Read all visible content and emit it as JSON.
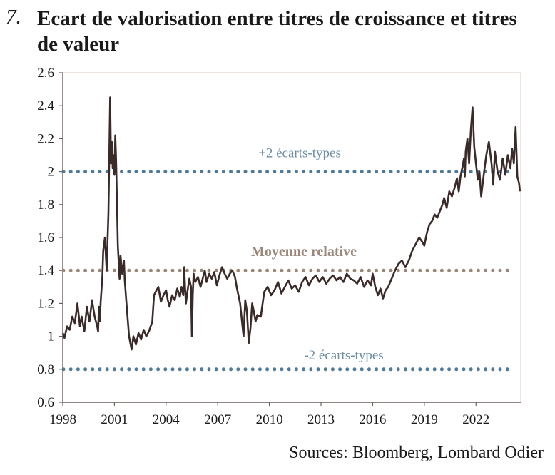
{
  "header": {
    "number": "7.",
    "title": "Ecart de valorisation entre titres de croissance et titres de valeur"
  },
  "source": "Sources: Bloomberg, Lombard Odier",
  "colors": {
    "series": "#3a2a28",
    "plus_minus_lines": "#4f7a99",
    "mean_line": "#9a877a",
    "plus_minus_text": "#6d8ea6",
    "mean_text": "#9a877a",
    "frame": "#e3c7c2"
  },
  "chart_data": {
    "type": "line",
    "title": "Ecart de valorisation entre titres de croissance et titres de valeur",
    "xlabel": "",
    "ylabel": "",
    "xlim": [
      1998,
      2024.6
    ],
    "ylim": [
      0.6,
      2.6
    ],
    "x_ticks": [
      "1998",
      "2001",
      "2004",
      "2007",
      "2010",
      "2013",
      "2016",
      "2019",
      "2022"
    ],
    "y_ticks": [
      "0.6",
      "0.8",
      "1",
      "1.2",
      "1.4",
      "1.6",
      "1.8",
      "2",
      "2.2",
      "2.4",
      "2.6"
    ],
    "grid": false,
    "reference_lines": [
      {
        "label": "+2 écarts-types",
        "y": 2.0,
        "style": "dotted"
      },
      {
        "label": "Moyenne relative",
        "y": 1.4,
        "style": "dotted"
      },
      {
        "label": "-2 écarts-types",
        "y": 0.8,
        "style": "dotted"
      }
    ],
    "series": [
      {
        "x": [
          1998.0,
          1998.1,
          1998.25,
          1998.4,
          1998.55,
          1998.7,
          1998.85,
          1999.0,
          1999.1,
          1999.25,
          1999.4,
          1999.55,
          1999.7,
          1999.85,
          2000.0,
          2000.05,
          2000.1,
          2000.15,
          2000.2,
          2000.3,
          2000.35,
          2000.45,
          2000.55,
          2000.65,
          2000.75,
          2000.8,
          2000.85,
          2000.9,
          2000.95,
          2001.0,
          2001.05,
          2001.1,
          2001.2,
          2001.3,
          2001.35,
          2001.45,
          2001.55,
          2001.6,
          2001.7,
          2001.85,
          2002.0,
          2002.1,
          2002.25,
          2002.4,
          2002.55,
          2002.7,
          2002.85,
          2003.0,
          2003.1,
          2003.2,
          2003.3,
          2003.45,
          2003.55,
          2003.7,
          2003.85,
          2004.0,
          2004.1,
          2004.2,
          2004.35,
          2004.5,
          2004.65,
          2004.8,
          2004.9,
          2005.0,
          2005.05,
          2005.1,
          2005.15,
          2005.25,
          2005.35,
          2005.45,
          2005.5,
          2005.55,
          2005.6,
          2005.7,
          2005.85,
          2006.0,
          2006.1,
          2006.25,
          2006.35,
          2006.5,
          2006.65,
          2006.8,
          2006.95,
          2007.1,
          2007.25,
          2007.4,
          2007.55,
          2007.7,
          2007.85,
          2008.0,
          2008.1,
          2008.2,
          2008.3,
          2008.4,
          2008.5,
          2008.6,
          2008.7,
          2008.8,
          2008.9,
          2009.0,
          2009.1,
          2009.2,
          2009.3,
          2009.5,
          2009.7,
          2009.9,
          2010.1,
          2010.3,
          2010.5,
          2010.7,
          2010.9,
          2011.1,
          2011.3,
          2011.5,
          2011.7,
          2011.9,
          2012.1,
          2012.3,
          2012.5,
          2012.7,
          2012.9,
          2013.1,
          2013.3,
          2013.5,
          2013.7,
          2013.9,
          2014.1,
          2014.3,
          2014.5,
          2014.7,
          2014.9,
          2015.1,
          2015.3,
          2015.5,
          2015.7,
          2015.9,
          2016.0,
          2016.15,
          2016.3,
          2016.45,
          2016.6,
          2016.75,
          2016.9,
          2017.1,
          2017.3,
          2017.5,
          2017.7,
          2017.9,
          2018.1,
          2018.3,
          2018.5,
          2018.7,
          2018.9,
          2019.0,
          2019.15,
          2019.3,
          2019.45,
          2019.6,
          2019.75,
          2019.9,
          2020.05,
          2020.15,
          2020.3,
          2020.45,
          2020.6,
          2020.75,
          2020.9,
          2021.0,
          2021.1,
          2021.2,
          2021.3,
          2021.35,
          2021.4,
          2021.5,
          2021.6,
          2021.7,
          2021.8,
          2021.9,
          2022.0,
          2022.1,
          2022.2,
          2022.3,
          2022.45,
          2022.6,
          2022.75,
          2022.9,
          2023.0,
          2023.1,
          2023.25,
          2023.4,
          2023.55,
          2023.7,
          2023.85,
          2024.0,
          2024.1,
          2024.2,
          2024.3,
          2024.4,
          2024.5,
          2024.55
        ],
        "values": [
          1.02,
          0.99,
          1.06,
          1.04,
          1.12,
          1.08,
          1.2,
          1.06,
          1.12,
          1.03,
          1.18,
          1.09,
          1.22,
          1.12,
          1.06,
          1.03,
          1.18,
          1.09,
          1.21,
          1.36,
          1.52,
          1.6,
          1.4,
          1.75,
          2.45,
          2.05,
          2.18,
          2.02,
          2.1,
          1.98,
          2.22,
          2.06,
          1.55,
          1.35,
          1.49,
          1.38,
          1.46,
          1.34,
          1.2,
          1.0,
          0.92,
          1.0,
          0.95,
          1.02,
          0.98,
          1.04,
          1.0,
          1.03,
          1.06,
          1.09,
          1.25,
          1.28,
          1.3,
          1.21,
          1.25,
          1.28,
          1.22,
          1.18,
          1.25,
          1.22,
          1.29,
          1.24,
          1.3,
          1.25,
          1.42,
          1.3,
          1.2,
          1.28,
          1.35,
          1.3,
          1.0,
          1.25,
          1.38,
          1.33,
          1.36,
          1.3,
          1.34,
          1.4,
          1.33,
          1.38,
          1.35,
          1.39,
          1.31,
          1.37,
          1.42,
          1.38,
          1.35,
          1.38,
          1.4,
          1.36,
          1.3,
          1.25,
          1.2,
          1.1,
          1.0,
          1.22,
          1.15,
          0.96,
          1.05,
          1.2,
          1.15,
          1.09,
          1.13,
          1.12,
          1.27,
          1.3,
          1.25,
          1.28,
          1.33,
          1.26,
          1.3,
          1.34,
          1.29,
          1.31,
          1.27,
          1.33,
          1.36,
          1.31,
          1.35,
          1.37,
          1.33,
          1.36,
          1.32,
          1.35,
          1.37,
          1.34,
          1.36,
          1.33,
          1.38,
          1.35,
          1.34,
          1.32,
          1.36,
          1.3,
          1.34,
          1.31,
          1.38,
          1.3,
          1.25,
          1.29,
          1.23,
          1.28,
          1.3,
          1.35,
          1.4,
          1.44,
          1.46,
          1.42,
          1.46,
          1.52,
          1.56,
          1.6,
          1.57,
          1.55,
          1.63,
          1.68,
          1.7,
          1.74,
          1.72,
          1.76,
          1.8,
          1.84,
          1.78,
          1.88,
          1.85,
          1.9,
          1.96,
          1.88,
          1.97,
          2.02,
          2.08,
          1.97,
          2.12,
          2.2,
          2.05,
          2.25,
          2.39,
          2.15,
          2.05,
          1.95,
          2.0,
          1.85,
          1.98,
          2.1,
          2.18,
          2.05,
          1.92,
          2.12,
          2.0,
          1.95,
          2.08,
          1.98,
          2.1,
          2.02,
          2.14,
          2.05,
          2.27,
          1.97,
          1.93,
          1.88
        ]
      }
    ]
  }
}
